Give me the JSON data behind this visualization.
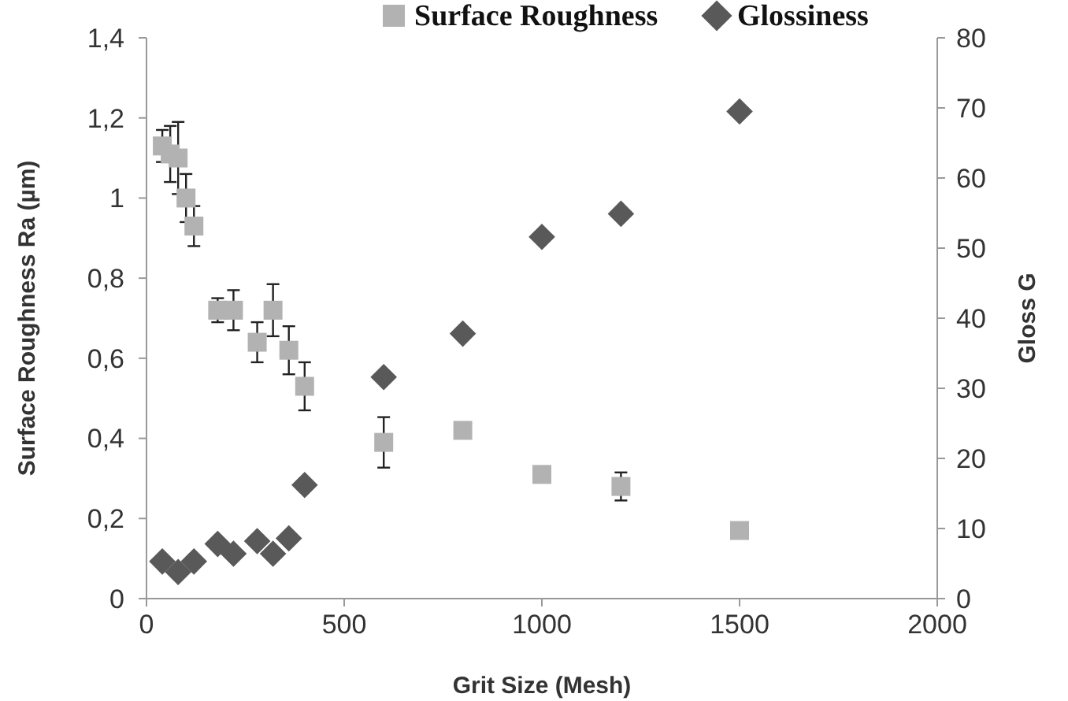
{
  "chart_data": {
    "type": "scatter",
    "xlabel": "Grit Size (Mesh)",
    "ylabel": "Surface Roughness Ra (µm)",
    "y2label": "Gloss G",
    "legend": "top",
    "grid": false,
    "xlim": [
      0,
      2000
    ],
    "xticks": [
      0,
      500,
      1000,
      1500,
      2000
    ],
    "ylim": [
      0,
      1.4
    ],
    "yticks": [
      0,
      {
        "value": 0.2,
        "label": "0,2"
      },
      {
        "value": 0.4,
        "label": "0,4"
      },
      {
        "value": 0.6,
        "label": "0,6"
      },
      {
        "value": 0.8,
        "label": "0,8"
      },
      1,
      {
        "value": 1.2,
        "label": "1,2"
      },
      {
        "value": 1.4,
        "label": "1,4"
      }
    ],
    "y2lim": [
      0,
      80
    ],
    "y2ticks": [
      0,
      10,
      20,
      30,
      40,
      50,
      60,
      70,
      80
    ],
    "series": [
      {
        "name": "Surface Roughness",
        "color": "#b2b2b2",
        "marker": "square",
        "x": [
          40,
          60,
          80,
          100,
          120,
          180,
          220,
          280,
          320,
          360,
          400,
          600,
          800,
          1000,
          1200,
          1500
        ],
        "values": [
          1.13,
          1.11,
          1.1,
          1.0,
          0.93,
          0.72,
          0.72,
          0.64,
          0.72,
          0.62,
          0.53,
          0.39,
          0.42,
          0.31,
          0.28,
          0.17
        ],
        "errors": [
          0.04,
          0.07,
          0.09,
          0.06,
          0.05,
          0.03,
          0.05,
          0.05,
          0.065,
          0.06,
          0.06,
          0.063,
          null,
          null,
          0.035,
          null
        ]
      },
      {
        "name": "Glossiness",
        "color": "#595959",
        "marker": "diamond",
        "axis": "y2",
        "x": [
          40,
          80,
          120,
          180,
          220,
          280,
          320,
          360,
          400,
          600,
          800,
          1000,
          1200,
          1500
        ],
        "values": [
          5.3,
          3.8,
          5.3,
          7.8,
          6.4,
          8.2,
          6.4,
          8.6,
          16.2,
          31.6,
          37.8,
          51.6,
          54.9,
          69.5
        ]
      }
    ]
  }
}
